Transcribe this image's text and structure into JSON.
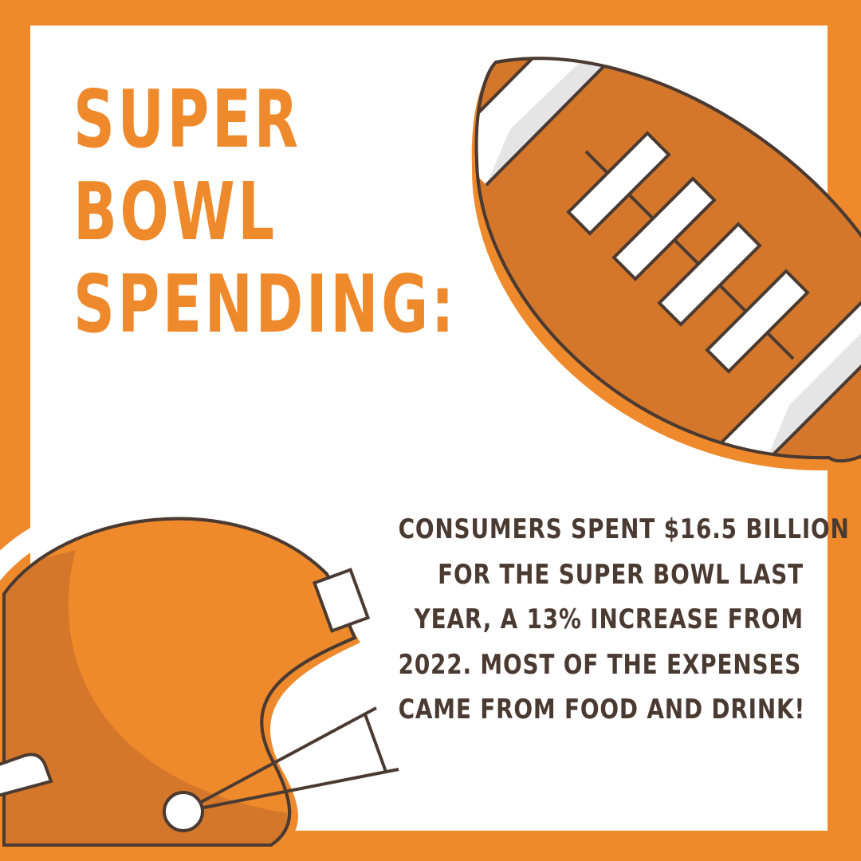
{
  "headline": {
    "lines": [
      "SUPER",
      "BOWL",
      "SPENDING:"
    ]
  },
  "body": {
    "lines": [
      "CONSUMERS SPENT $16.5 BILLION",
      "FOR THE SUPER BOWL LAST",
      "YEAR, A 13% INCREASE FROM",
      "2022. MOST OF THE EXPENSES  ",
      "CAME FROM FOOD AND DRINK!"
    ]
  },
  "colors": {
    "orange": "#ee8a2c",
    "dark_orange": "#d4772a",
    "brown": "#4b3a32",
    "white": "#ffffff",
    "light_gray": "#e5e5e5"
  },
  "icons": [
    "football-icon",
    "football-helmet-icon"
  ]
}
